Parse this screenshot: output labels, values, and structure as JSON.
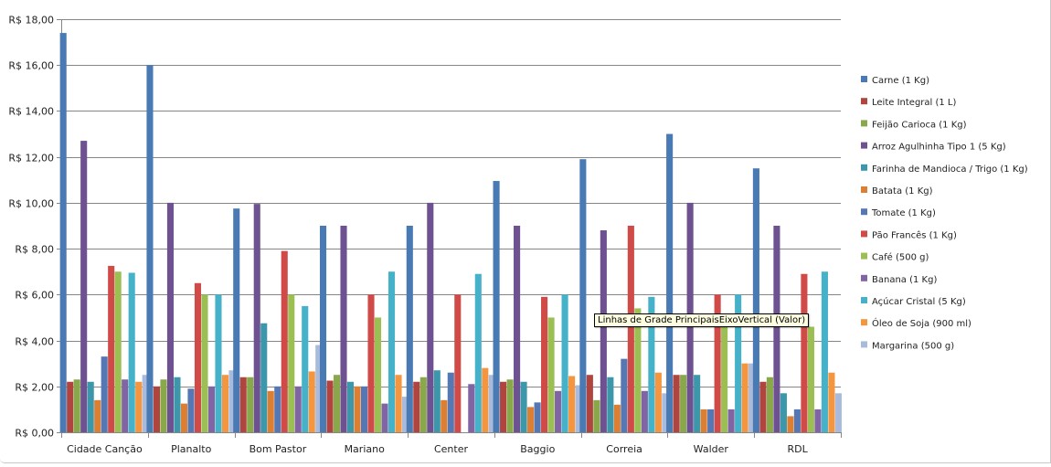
{
  "chart_data": {
    "type": "bar",
    "title": "",
    "xlabel": "",
    "ylabel": "",
    "ylim": [
      0,
      18
    ],
    "y_ticks": [
      "R$ 0,00",
      "R$ 2,00",
      "R$ 4,00",
      "R$ 6,00",
      "R$ 8,00",
      "R$ 10,00",
      "R$ 12,00",
      "R$ 14,00",
      "R$ 16,00",
      "R$ 18,00"
    ],
    "grid": true,
    "legend_position": "right",
    "categories": [
      "Cidade Canção",
      "Planalto",
      "Bom Pastor",
      "Mariano",
      "Center",
      "Baggio",
      "Correia",
      "Walder",
      "RDL"
    ],
    "series": [
      {
        "name": "Carne (1 Kg)",
        "color": "#4a7ab4",
        "values": [
          17.4,
          16.0,
          9.75,
          9.0,
          9.0,
          10.95,
          11.9,
          13.0,
          11.5
        ]
      },
      {
        "name": "Leite Integral (1 L)",
        "color": "#b0443f",
        "values": [
          2.2,
          2.0,
          2.4,
          2.25,
          2.2,
          2.2,
          2.5,
          2.5,
          2.2
        ]
      },
      {
        "name": "Feijão Carioca (1 Kg)",
        "color": "#88a84a",
        "values": [
          2.3,
          2.3,
          2.4,
          2.5,
          2.4,
          2.3,
          1.4,
          2.5,
          2.4
        ]
      },
      {
        "name": "Arroz Agulhinha Tipo 1  (5 Kg)",
        "color": "#6d5190",
        "values": [
          12.7,
          10.0,
          9.95,
          9.0,
          10.0,
          9.0,
          8.8,
          10.0,
          9.0
        ]
      },
      {
        "name": "Farinha de Mandioca / Trigo  (1 Kg)",
        "color": "#3c97ab",
        "values": [
          2.2,
          2.4,
          4.75,
          2.2,
          2.7,
          2.2,
          2.4,
          2.5,
          1.7
        ]
      },
      {
        "name": "Batata  (1 Kg)",
        "color": "#dd7f33",
        "values": [
          1.4,
          1.25,
          1.8,
          2.0,
          1.4,
          1.1,
          1.2,
          1.0,
          0.7
        ]
      },
      {
        "name": "Tomate  (1 Kg)",
        "color": "#5578b5",
        "values": [
          3.3,
          1.9,
          2.0,
          2.0,
          2.6,
          1.3,
          3.2,
          1.0,
          1.0
        ]
      },
      {
        "name": "Pão Francês  (1 Kg)",
        "color": "#d04b47",
        "values": [
          7.25,
          6.5,
          7.9,
          6.0,
          6.0,
          5.9,
          9.0,
          6.0,
          6.9
        ]
      },
      {
        "name": "Café (500 g)",
        "color": "#9cbf54",
        "values": [
          7.0,
          6.0,
          6.0,
          5.0,
          0,
          5.0,
          5.4,
          4.6,
          4.6
        ]
      },
      {
        "name": "Banana  (1 Kg)",
        "color": "#8164a4",
        "values": [
          2.3,
          2.0,
          2.0,
          1.25,
          2.1,
          1.8,
          1.8,
          1.0,
          1.0
        ]
      },
      {
        "name": "Açúcar Cristal  (5 Kg)",
        "color": "#46b2c9",
        "values": [
          6.95,
          6.0,
          5.5,
          7.0,
          6.9,
          6.0,
          5.9,
          6.0,
          7.0
        ]
      },
      {
        "name": "Óleo de Soja (900 ml)",
        "color": "#f49640",
        "values": [
          2.2,
          2.5,
          2.65,
          2.5,
          2.8,
          2.45,
          2.6,
          3.0,
          2.6
        ]
      },
      {
        "name": "Margarina (500 g)",
        "color": "#a9bbdc",
        "values": [
          2.5,
          2.7,
          3.8,
          1.55,
          2.5,
          2.05,
          1.7,
          3.0,
          1.7
        ]
      }
    ]
  },
  "tooltip": {
    "text": "Linhas de Grade PrincipaisEixoVertical (Valor)"
  }
}
